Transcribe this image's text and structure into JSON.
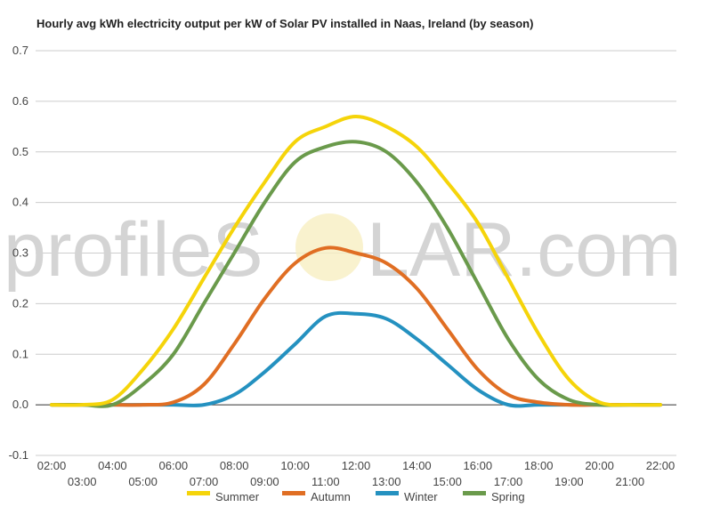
{
  "chart_data": {
    "type": "line",
    "title": "Hourly avg kWh electricity output per kW of Solar PV installed in Naas, Ireland (by season)",
    "xlabel": "",
    "ylabel": "",
    "ylim": [
      -0.1,
      0.7
    ],
    "yticks": [
      "0.7",
      "0.6",
      "0.5",
      "0.4",
      "0.3",
      "0.2",
      "0.1",
      "0.0",
      "-0.1"
    ],
    "ytick_values": [
      0.7,
      0.6,
      0.5,
      0.4,
      0.3,
      0.2,
      0.1,
      0.0,
      -0.1
    ],
    "x": [
      "02:00",
      "03:00",
      "04:00",
      "05:00",
      "06:00",
      "07:00",
      "08:00",
      "09:00",
      "10:00",
      "11:00",
      "12:00",
      "13:00",
      "14:00",
      "15:00",
      "16:00",
      "17:00",
      "18:00",
      "19:00",
      "20:00",
      "21:00",
      "22:00"
    ],
    "grid": true,
    "legend_position": "bottom",
    "series": [
      {
        "name": "Summer",
        "color": "#f5d40a",
        "values": [
          0,
          0,
          0.01,
          0.07,
          0.15,
          0.25,
          0.35,
          0.44,
          0.52,
          0.55,
          0.57,
          0.55,
          0.51,
          0.44,
          0.36,
          0.25,
          0.14,
          0.05,
          0.005,
          0,
          0
        ]
      },
      {
        "name": "Autumn",
        "color": "#e06e23",
        "values": [
          0,
          0,
          0,
          0,
          0.005,
          0.04,
          0.12,
          0.21,
          0.28,
          0.31,
          0.3,
          0.28,
          0.23,
          0.15,
          0.07,
          0.02,
          0.005,
          0,
          0,
          0,
          0
        ]
      },
      {
        "name": "Winter",
        "color": "#2491c0",
        "values": [
          0,
          0,
          0,
          0,
          0,
          0,
          0.02,
          0.065,
          0.12,
          0.175,
          0.18,
          0.17,
          0.13,
          0.08,
          0.03,
          0,
          0,
          0,
          0,
          0,
          0
        ]
      },
      {
        "name": "Spring",
        "color": "#6a9a4b",
        "values": [
          0,
          0,
          0,
          0.04,
          0.1,
          0.2,
          0.3,
          0.4,
          0.48,
          0.51,
          0.52,
          0.5,
          0.44,
          0.35,
          0.24,
          0.13,
          0.05,
          0.01,
          0,
          0,
          0
        ]
      }
    ]
  },
  "watermark": {
    "text_left": "profileS",
    "text_right": "LAR.com"
  }
}
